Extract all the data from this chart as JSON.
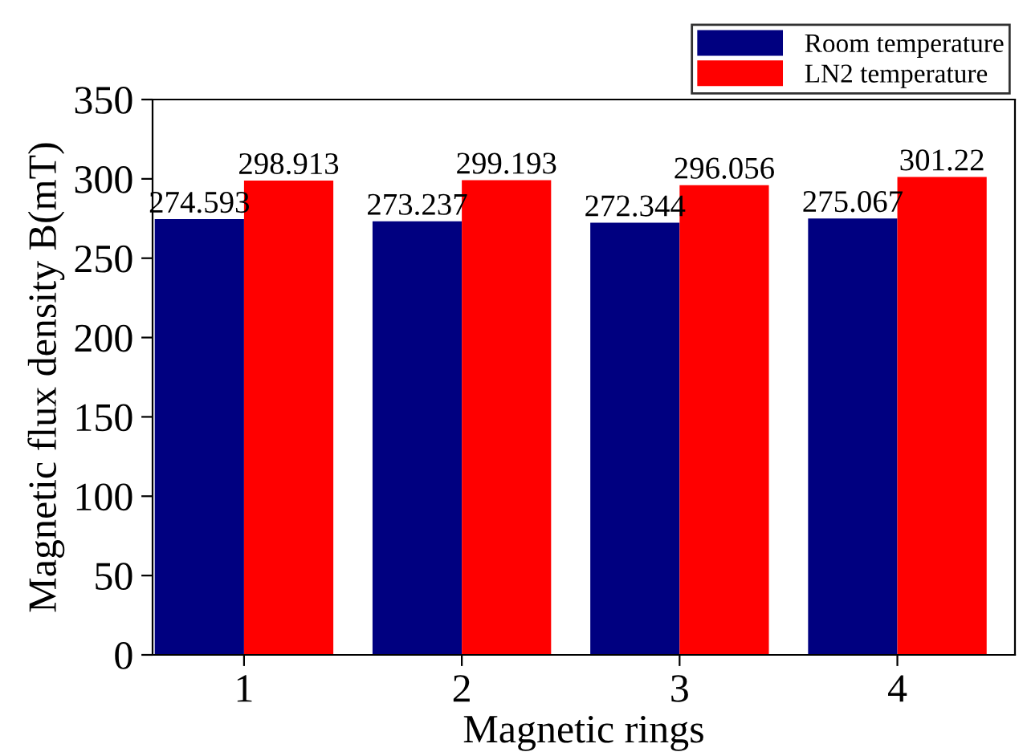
{
  "chart_data": {
    "type": "bar",
    "xlabel": "Magnetic rings",
    "ylabel": "Magnetic flux density B(mT)",
    "categories": [
      "1",
      "2",
      "3",
      "4"
    ],
    "series": [
      {
        "name": "Room temperature",
        "color": "#000080",
        "values": [
          274.593,
          273.237,
          272.344,
          275.067
        ]
      },
      {
        "name": "LN2 temperature",
        "color": "#ff0000",
        "values": [
          298.913,
          299.193,
          296.056,
          301.22
        ]
      }
    ],
    "ylim": [
      0,
      350
    ],
    "yticks": [
      0,
      50,
      100,
      150,
      200,
      250,
      300,
      350
    ],
    "data_labels": true,
    "legend": "top right",
    "grid": false
  }
}
